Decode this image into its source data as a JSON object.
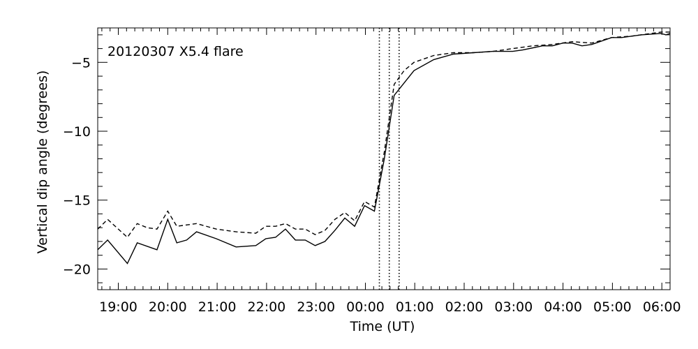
{
  "chart_data": {
    "type": "line",
    "title": "",
    "annotation": "20120307 X5.4 flare",
    "xlabel": "Time (UT)",
    "ylabel": "Vertical dip angle (degrees)",
    "xlim": [
      "2012-03-06T18:35",
      "2012-03-07T06:10"
    ],
    "ylim": [
      -21.5,
      -2.5
    ],
    "xticks": [
      {
        "t": "2012-03-06T19:00",
        "label": "19:00"
      },
      {
        "t": "2012-03-06T20:00",
        "label": "20:00"
      },
      {
        "t": "2012-03-06T21:00",
        "label": "21:00"
      },
      {
        "t": "2012-03-06T22:00",
        "label": "22:00"
      },
      {
        "t": "2012-03-06T23:00",
        "label": "23:00"
      },
      {
        "t": "2012-03-07T00:00",
        "label": "00:00"
      },
      {
        "t": "2012-03-07T01:00",
        "label": "01:00"
      },
      {
        "t": "2012-03-07T02:00",
        "label": "02:00"
      },
      {
        "t": "2012-03-07T03:00",
        "label": "03:00"
      },
      {
        "t": "2012-03-07T04:00",
        "label": "04:00"
      },
      {
        "t": "2012-03-07T05:00",
        "label": "05:00"
      },
      {
        "t": "2012-03-07T06:00",
        "label": "06:00"
      }
    ],
    "yticks": [
      {
        "v": -5,
        "label": "−5"
      },
      {
        "v": -10,
        "label": "−10"
      },
      {
        "v": -15,
        "label": "−15"
      },
      {
        "v": -20,
        "label": "−20"
      }
    ],
    "vlines": [
      "2012-03-07T00:17",
      "2012-03-07T00:29",
      "2012-03-07T00:41"
    ],
    "grid": false,
    "series": [
      {
        "style": "solid",
        "x": [
          "2012-03-06T18:35",
          "2012-03-06T18:47",
          "2012-03-06T19:11",
          "2012-03-06T19:23",
          "2012-03-06T19:47",
          "2012-03-06T20:00",
          "2012-03-06T20:11",
          "2012-03-06T20:23",
          "2012-03-06T20:35",
          "2012-03-06T20:59",
          "2012-03-06T21:23",
          "2012-03-06T21:47",
          "2012-03-06T21:59",
          "2012-03-06T22:11",
          "2012-03-06T22:23",
          "2012-03-06T22:35",
          "2012-03-06T22:47",
          "2012-03-06T22:59",
          "2012-03-06T23:11",
          "2012-03-06T23:23",
          "2012-03-06T23:35",
          "2012-03-06T23:47",
          "2012-03-06T23:59",
          "2012-03-07T00:11",
          "2012-03-07T00:23",
          "2012-03-07T00:35",
          "2012-03-07T00:47",
          "2012-03-07T00:59",
          "2012-03-07T01:23",
          "2012-03-07T01:35",
          "2012-03-07T01:47",
          "2012-03-07T02:11",
          "2012-03-07T02:35",
          "2012-03-07T02:59",
          "2012-03-07T03:11",
          "2012-03-07T03:35",
          "2012-03-07T03:47",
          "2012-03-07T04:00",
          "2012-03-07T04:11",
          "2012-03-07T04:23",
          "2012-03-07T04:35",
          "2012-03-07T04:59",
          "2012-03-07T05:11",
          "2012-03-07T05:35",
          "2012-03-07T05:59",
          "2012-03-07T06:05",
          "2012-03-07T06:10"
        ],
        "y": [
          -18.6,
          -17.9,
          -19.6,
          -18.1,
          -18.6,
          -16.4,
          -18.1,
          -17.9,
          -17.3,
          -17.8,
          -18.4,
          -18.3,
          -17.8,
          -17.7,
          -17.1,
          -17.9,
          -17.9,
          -18.3,
          -18.0,
          -17.2,
          -16.3,
          -16.9,
          -15.4,
          -15.8,
          -12.0,
          -7.4,
          -6.5,
          -5.6,
          -4.8,
          -4.6,
          -4.4,
          -4.3,
          -4.2,
          -4.2,
          -4.1,
          -3.8,
          -3.8,
          -3.6,
          -3.6,
          -3.8,
          -3.7,
          -3.2,
          -3.2,
          -3.0,
          -2.9,
          -3.0,
          -2.9
        ]
      },
      {
        "style": "dashed",
        "x": [
          "2012-03-06T18:35",
          "2012-03-06T18:47",
          "2012-03-06T19:11",
          "2012-03-06T19:23",
          "2012-03-06T19:35",
          "2012-03-06T19:47",
          "2012-03-06T20:00",
          "2012-03-06T20:11",
          "2012-03-06T20:35",
          "2012-03-06T20:59",
          "2012-03-06T21:23",
          "2012-03-06T21:47",
          "2012-03-06T21:59",
          "2012-03-06T22:11",
          "2012-03-06T22:23",
          "2012-03-06T22:35",
          "2012-03-06T22:47",
          "2012-03-06T22:59",
          "2012-03-06T23:11",
          "2012-03-06T23:23",
          "2012-03-06T23:35",
          "2012-03-06T23:47",
          "2012-03-06T23:59",
          "2012-03-07T00:11",
          "2012-03-07T00:23",
          "2012-03-07T00:35",
          "2012-03-07T00:47",
          "2012-03-07T00:59",
          "2012-03-07T01:23",
          "2012-03-07T01:47",
          "2012-03-07T02:11",
          "2012-03-07T02:35",
          "2012-03-07T02:59",
          "2012-03-07T03:23",
          "2012-03-07T03:47",
          "2012-03-07T04:11",
          "2012-03-07T04:35",
          "2012-03-07T04:59",
          "2012-03-07T05:23",
          "2012-03-07T05:47",
          "2012-03-07T05:59",
          "2012-03-07T06:10"
        ],
        "y": [
          -17.1,
          -16.4,
          -17.7,
          -16.7,
          -17.0,
          -17.1,
          -15.8,
          -16.9,
          -16.7,
          -17.1,
          -17.3,
          -17.4,
          -16.9,
          -16.9,
          -16.7,
          -17.1,
          -17.1,
          -17.5,
          -17.2,
          -16.4,
          -15.9,
          -16.5,
          -15.1,
          -15.5,
          -11.5,
          -6.6,
          -5.6,
          -5.0,
          -4.5,
          -4.3,
          -4.3,
          -4.2,
          -4.0,
          -3.8,
          -3.7,
          -3.5,
          -3.6,
          -3.2,
          -3.1,
          -2.9,
          -2.8,
          -2.8
        ]
      }
    ]
  }
}
